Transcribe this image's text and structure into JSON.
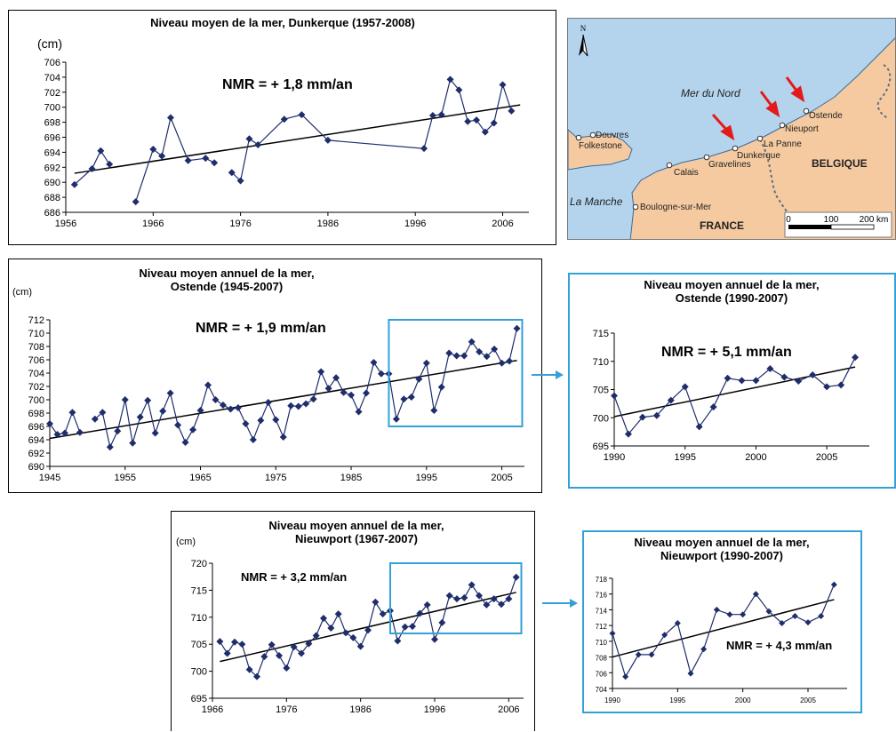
{
  "colors": {
    "series": "#1f2d6b",
    "trend": "#000000",
    "highlight": "#33a0d8",
    "sea": "#b4d4ee",
    "land": "#f5caa0"
  },
  "map": {
    "north": "N",
    "sea_north": "Mer du Nord",
    "sea_channel": "La Manche",
    "countries": [
      "BELGIQUE",
      "FRANCE"
    ],
    "towns": [
      "Douvres",
      "Folkestone",
      "Calais",
      "Gravelines",
      "Dunkerque",
      "La Panne",
      "Nieuport",
      "Ostende",
      "Boulogne-sur-Mer"
    ],
    "scale": [
      "0",
      "100",
      "200 km"
    ]
  },
  "chart_data": [
    {
      "type": "line",
      "title": "Niveau moyen de la mer, Dunkerque (1957-2008)",
      "ylabel": "(cm)",
      "annotation": "NMR = + 1,8 mm/an",
      "xlim": [
        1956,
        2009
      ],
      "ylim": [
        686,
        706
      ],
      "xticks": [
        "1956",
        "1966",
        "1976",
        "1986",
        "1996",
        "2006"
      ],
      "yticks": [
        "686",
        "688",
        "690",
        "692",
        "694",
        "696",
        "698",
        "700",
        "702",
        "704",
        "706"
      ],
      "x": [
        1957,
        1959,
        1960,
        1961,
        1962,
        1964,
        1966,
        1967,
        1968,
        1970,
        1972,
        1973,
        1974,
        1975,
        1976,
        1977,
        1978,
        1981,
        1983,
        1986,
        1997,
        1998,
        1999,
        2000,
        2001,
        2002,
        2003,
        2004,
        2005,
        2006,
        2007,
        2008
      ],
      "values": [
        689.7,
        691.8,
        694.2,
        692.4,
        null,
        687.4,
        694.4,
        693.5,
        698.6,
        692.9,
        693.2,
        692.6,
        null,
        691.3,
        690.2,
        695.8,
        695.0,
        698.4,
        699.0,
        695.6,
        694.5,
        698.9,
        699.0,
        703.7,
        702.3,
        698.1,
        698.3,
        696.7,
        697.9,
        703.0,
        699.5,
        null
      ],
      "trend": [
        [
          1957,
          691.2
        ],
        [
          2008,
          700.3
        ]
      ]
    },
    {
      "type": "line",
      "title": "Niveau moyen annuel de la mer,\nOstende (1945-2007)",
      "ylabel": "(cm)",
      "annotation": "NMR = + 1,9 mm/an",
      "xlim": [
        1945,
        2008
      ],
      "ylim": [
        690,
        712
      ],
      "xticks": [
        "1945",
        "1955",
        "1965",
        "1975",
        "1985",
        "1995",
        "2005"
      ],
      "yticks": [
        "690",
        "692",
        "694",
        "696",
        "698",
        "700",
        "702",
        "704",
        "706",
        "708",
        "710",
        "712"
      ],
      "x": [
        1945,
        1946,
        1947,
        1948,
        1949,
        1950,
        1951,
        1952,
        1953,
        1954,
        1955,
        1956,
        1957,
        1958,
        1959,
        1960,
        1961,
        1962,
        1963,
        1964,
        1965,
        1966,
        1967,
        1968,
        1969,
        1970,
        1971,
        1972,
        1973,
        1974,
        1975,
        1976,
        1977,
        1978,
        1979,
        1980,
        1981,
        1982,
        1983,
        1984,
        1985,
        1986,
        1987,
        1988,
        1989,
        1990,
        1991,
        1992,
        1993,
        1994,
        1995,
        1996,
        1997,
        1998,
        1999,
        2000,
        2001,
        2002,
        2003,
        2004,
        2005,
        2006,
        2007
      ],
      "values": [
        696.4,
        694.8,
        695.0,
        698.1,
        695.1,
        null,
        697.1,
        698.1,
        692.9,
        695.3,
        700.0,
        693.5,
        697.4,
        699.9,
        695.0,
        698.3,
        701.0,
        696.2,
        693.6,
        695.5,
        698.4,
        702.2,
        700.0,
        699.2,
        698.6,
        698.8,
        696.4,
        694.0,
        696.9,
        699.6,
        697.0,
        694.4,
        699.1,
        699.0,
        699.4,
        700.1,
        704.2,
        701.7,
        703.3,
        701.1,
        700.7,
        698.2,
        701.0,
        705.6,
        703.9,
        703.9,
        697.1,
        700.1,
        700.4,
        703.1,
        705.5,
        698.4,
        701.9,
        707.0,
        706.6,
        706.6,
        708.7,
        707.2,
        706.5,
        707.6,
        705.5,
        705.8,
        710.7
      ],
      "trend": [
        [
          1945,
          694.2
        ],
        [
          2007,
          705.9
        ]
      ]
    },
    {
      "type": "line",
      "title": "Niveau moyen annuel de la mer,\nOstende (1990-2007)",
      "annotation": "NMR = + 5,1 mm/an",
      "xlim": [
        1990,
        2008
      ],
      "ylim": [
        695,
        715
      ],
      "xticks": [
        "1990",
        "1995",
        "2000",
        "2005"
      ],
      "yticks": [
        "695",
        "700",
        "705",
        "710",
        "715"
      ],
      "x": [
        1990,
        1991,
        1992,
        1993,
        1994,
        1995,
        1996,
        1997,
        1998,
        1999,
        2000,
        2001,
        2002,
        2003,
        2004,
        2005,
        2006,
        2007
      ],
      "values": [
        703.9,
        697.1,
        700.1,
        700.4,
        703.1,
        705.5,
        698.4,
        701.9,
        707.0,
        706.6,
        706.6,
        708.7,
        707.2,
        706.5,
        707.6,
        705.5,
        705.8,
        710.7
      ],
      "trend": [
        [
          1990,
          700.2
        ],
        [
          2007,
          709.0
        ]
      ]
    },
    {
      "type": "line",
      "title": "Niveau moyen annuel de la mer,\nNieuwport (1967-2007)",
      "ylabel": "(cm)",
      "annotation": "NMR = + 3,2 mm/an",
      "xlim": [
        1966,
        2008
      ],
      "ylim": [
        695,
        720
      ],
      "xticks": [
        "1966",
        "1976",
        "1986",
        "1996",
        "2006"
      ],
      "yticks": [
        "695",
        "700",
        "705",
        "710",
        "715",
        "720"
      ],
      "x": [
        1967,
        1968,
        1969,
        1970,
        1971,
        1972,
        1973,
        1974,
        1975,
        1976,
        1977,
        1978,
        1979,
        1980,
        1981,
        1982,
        1983,
        1984,
        1985,
        1986,
        1987,
        1988,
        1989,
        1990,
        1991,
        1992,
        1993,
        1994,
        1995,
        1996,
        1997,
        1998,
        1999,
        2000,
        2001,
        2002,
        2003,
        2004,
        2005,
        2006,
        2007
      ],
      "values": [
        705.5,
        703.3,
        705.4,
        705.0,
        700.3,
        699.0,
        702.7,
        704.9,
        702.9,
        700.6,
        704.5,
        703.3,
        705.1,
        706.6,
        709.8,
        708.0,
        710.6,
        707.1,
        706.2,
        704.6,
        707.6,
        712.8,
        710.6,
        711.2,
        705.6,
        708.2,
        708.3,
        710.7,
        712.3,
        705.9,
        709.0,
        714.0,
        713.4,
        713.6,
        716.0,
        714.0,
        712.3,
        713.4,
        712.4,
        713.4,
        717.4
      ],
      "trend": [
        [
          1967,
          701.8
        ],
        [
          2007,
          714.6
        ]
      ]
    },
    {
      "type": "line",
      "title": "Niveau moyen annuel de la mer,\nNieuwport (1990-2007)",
      "annotation": "NMR = + 4,3 mm/an",
      "xlim": [
        1990,
        2008
      ],
      "ylim": [
        704,
        718
      ],
      "xticks": [
        "1990",
        "1995",
        "2000",
        "2005"
      ],
      "yticks": [
        "704",
        "706",
        "708",
        "710",
        "712",
        "714",
        "716",
        "718"
      ],
      "x": [
        1990,
        1991,
        1992,
        1993,
        1994,
        1995,
        1996,
        1997,
        1998,
        1999,
        2000,
        2001,
        2002,
        2003,
        2004,
        2005,
        2006,
        2007
      ],
      "values": [
        711.0,
        705.5,
        708.3,
        708.3,
        710.8,
        712.3,
        705.9,
        709.0,
        714.0,
        713.4,
        713.4,
        716.0,
        713.8,
        712.3,
        713.2,
        712.4,
        713.2,
        717.2
      ],
      "trend": [
        [
          1990,
          708.0
        ],
        [
          2007,
          715.3
        ]
      ]
    }
  ]
}
